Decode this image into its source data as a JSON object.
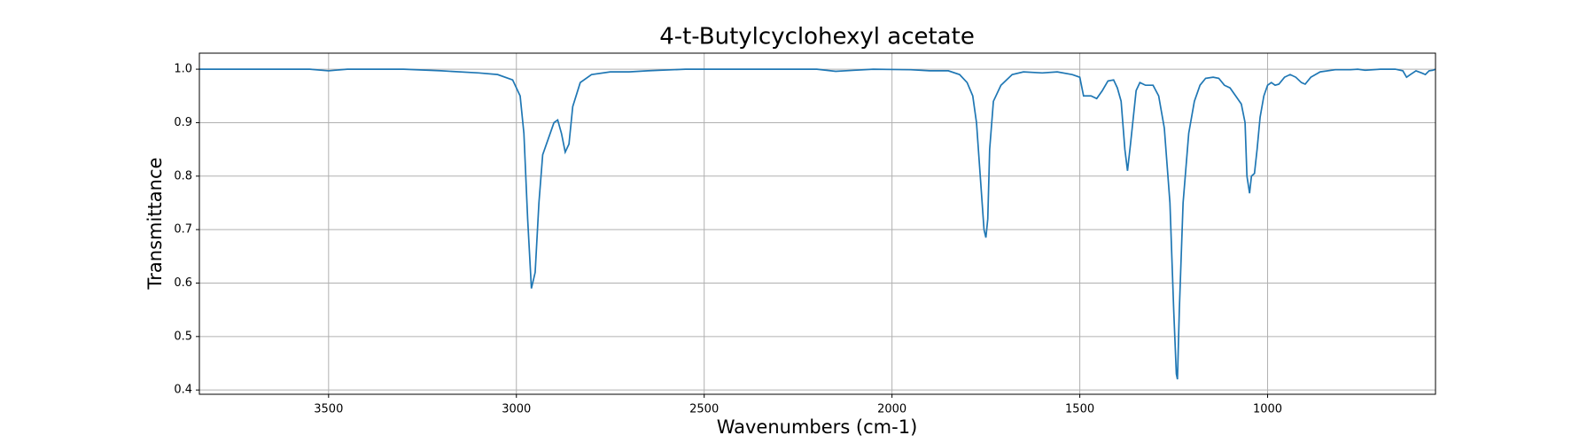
{
  "chart_data": {
    "type": "line",
    "title": "4-t-Butylcyclohexyl acetate",
    "x_label": "Wavenumbers (cm-1)",
    "y_label": "Transmittance",
    "xlim": [
      3844,
      553
    ],
    "ylim": [
      0.392,
      1.03
    ],
    "xticks": [
      3500,
      3000,
      2500,
      2000,
      1500,
      1000
    ],
    "yticks": [
      0.4,
      0.5,
      0.6,
      0.7,
      0.8,
      0.9,
      {
        "value": 1,
        "label": "1.0"
      }
    ],
    "grid": true,
    "x": [
      3844,
      3700,
      3550,
      3500,
      3450,
      3300,
      3200,
      3100,
      3050,
      3010,
      2990,
      2980,
      2970,
      2960,
      2950,
      2940,
      2930,
      2915,
      2900,
      2890,
      2880,
      2870,
      2860,
      2850,
      2830,
      2800,
      2750,
      2700,
      2650,
      2550,
      2400,
      2300,
      2200,
      2150,
      2100,
      2050,
      1950,
      1900,
      1850,
      1820,
      1800,
      1785,
      1775,
      1765,
      1755,
      1750,
      1745,
      1740,
      1730,
      1710,
      1680,
      1650,
      1600,
      1560,
      1520,
      1500,
      1490,
      1470,
      1455,
      1440,
      1425,
      1410,
      1400,
      1390,
      1380,
      1373,
      1365,
      1350,
      1340,
      1325,
      1305,
      1290,
      1275,
      1260,
      1250,
      1243,
      1240,
      1235,
      1225,
      1210,
      1195,
      1180,
      1165,
      1145,
      1130,
      1115,
      1100,
      1085,
      1070,
      1060,
      1055,
      1048,
      1043,
      1035,
      1028,
      1020,
      1010,
      1000,
      990,
      980,
      970,
      955,
      940,
      925,
      910,
      900,
      885,
      860,
      820,
      780,
      760,
      740,
      700,
      660,
      640,
      630,
      620,
      605,
      590,
      580,
      570,
      560,
      553
    ],
    "series": [
      {
        "name": "4-t-Butylcyclohexyl acetate",
        "color": "#1f77b4",
        "values": [
          1.0,
          1.0,
          1.0,
          0.997,
          1.0,
          1.0,
          0.997,
          0.993,
          0.99,
          0.98,
          0.95,
          0.88,
          0.72,
          0.59,
          0.62,
          0.75,
          0.84,
          0.87,
          0.9,
          0.905,
          0.88,
          0.845,
          0.86,
          0.93,
          0.975,
          0.99,
          0.995,
          0.995,
          0.997,
          1.0,
          1.0,
          1.0,
          1.0,
          0.996,
          0.998,
          1.0,
          0.999,
          0.997,
          0.997,
          0.99,
          0.975,
          0.95,
          0.9,
          0.8,
          0.7,
          0.685,
          0.72,
          0.85,
          0.94,
          0.97,
          0.99,
          0.995,
          0.993,
          0.995,
          0.99,
          0.985,
          0.95,
          0.95,
          0.945,
          0.96,
          0.978,
          0.98,
          0.965,
          0.94,
          0.85,
          0.81,
          0.86,
          0.96,
          0.975,
          0.97,
          0.97,
          0.95,
          0.89,
          0.75,
          0.55,
          0.43,
          0.42,
          0.55,
          0.75,
          0.88,
          0.94,
          0.97,
          0.983,
          0.985,
          0.983,
          0.97,
          0.965,
          0.95,
          0.935,
          0.9,
          0.8,
          0.768,
          0.8,
          0.805,
          0.85,
          0.91,
          0.95,
          0.97,
          0.975,
          0.97,
          0.972,
          0.985,
          0.99,
          0.985,
          0.975,
          0.972,
          0.985,
          0.995,
          0.999,
          0.999,
          1.0,
          0.998,
          1.0,
          1.0,
          0.997,
          0.985,
          0.99,
          0.997,
          0.993,
          0.99,
          0.997,
          0.998,
          1.0
        ]
      }
    ]
  }
}
